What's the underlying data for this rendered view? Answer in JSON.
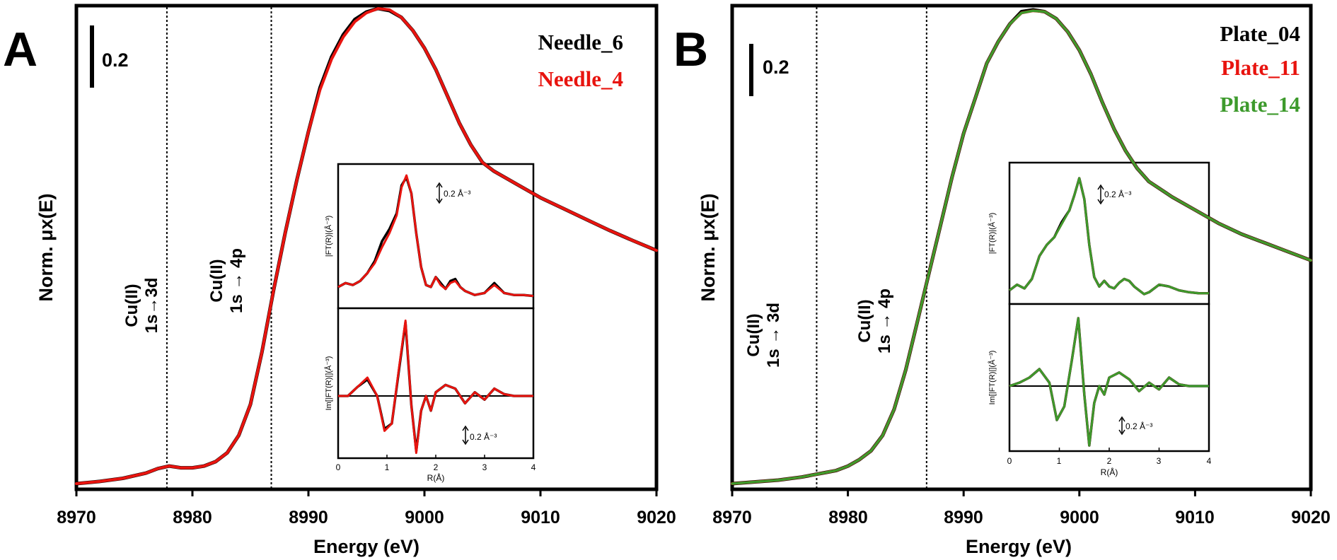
{
  "chart_data": [
    {
      "panel": "A",
      "type": "line",
      "xlabel": "Energy (eV)",
      "ylabel": "Norm. μx(E)",
      "xlim": [
        8970,
        9020
      ],
      "xticks": [
        "8970",
        "8980",
        "8990",
        "9000",
        "9010",
        "9020"
      ],
      "scale_bar": "0.2",
      "vlines": [
        8977.8,
        8986.8
      ],
      "annotations": [
        {
          "line1": "Cu(II)",
          "line2": "1s→3d"
        },
        {
          "line1": "Cu(II)",
          "line2": "1s → 4p"
        }
      ],
      "legend_position": "top-right",
      "x": [
        8970,
        8972,
        8974,
        8976,
        8977,
        8978,
        8979,
        8980,
        8981,
        8982,
        8983,
        8984,
        8985,
        8986,
        8987,
        8988,
        8989,
        8990,
        8991,
        8992,
        8993,
        8994,
        8995,
        8996,
        8997,
        8998,
        8999,
        9000,
        9001,
        9002,
        9003,
        9004,
        9005,
        9006,
        9008,
        9010,
        9012,
        9014,
        9016,
        9018,
        9020
      ],
      "series": [
        {
          "name": "Needle_6",
          "color": "#000000",
          "values": [
            0.0,
            0.005,
            0.012,
            0.024,
            0.034,
            0.04,
            0.036,
            0.036,
            0.04,
            0.05,
            0.07,
            0.11,
            0.18,
            0.3,
            0.44,
            0.57,
            0.69,
            0.8,
            0.9,
            0.97,
            1.02,
            1.055,
            1.072,
            1.08,
            1.075,
            1.06,
            1.03,
            0.99,
            0.94,
            0.88,
            0.82,
            0.77,
            0.73,
            0.71,
            0.68,
            0.65,
            0.625,
            0.6,
            0.575,
            0.552,
            0.53
          ]
        },
        {
          "name": "Needle_4",
          "color": "#e8140f",
          "values": [
            0.0,
            0.005,
            0.012,
            0.024,
            0.034,
            0.04,
            0.036,
            0.036,
            0.04,
            0.05,
            0.07,
            0.11,
            0.18,
            0.3,
            0.44,
            0.57,
            0.69,
            0.8,
            0.895,
            0.965,
            1.015,
            1.05,
            1.07,
            1.08,
            1.077,
            1.06,
            1.03,
            0.99,
            0.94,
            0.88,
            0.82,
            0.77,
            0.73,
            0.71,
            0.68,
            0.65,
            0.625,
            0.6,
            0.575,
            0.552,
            0.53
          ]
        }
      ],
      "inset": {
        "top": {
          "ylabel": "|FT(R)|(Å⁻³)",
          "scale_bar": "0.2 Å⁻³",
          "x": [
            0.0,
            0.15,
            0.3,
            0.45,
            0.6,
            0.75,
            0.9,
            1.05,
            1.2,
            1.3,
            1.4,
            1.5,
            1.6,
            1.7,
            1.8,
            1.9,
            2.0,
            2.1,
            2.2,
            2.3,
            2.4,
            2.5,
            2.6,
            2.7,
            2.8,
            3.0,
            3.2,
            3.4,
            3.6,
            3.8,
            4.0
          ],
          "series": [
            {
              "name": "Needle_6",
              "color": "#000000",
              "values": [
                0.05,
                0.07,
                0.06,
                0.08,
                0.12,
                0.18,
                0.28,
                0.34,
                0.42,
                0.56,
                0.6,
                0.52,
                0.32,
                0.15,
                0.06,
                0.05,
                0.1,
                0.07,
                0.04,
                0.08,
                0.09,
                0.05,
                0.03,
                0.02,
                0.01,
                0.02,
                0.07,
                0.02,
                0.01,
                0.01,
                0.005
              ]
            },
            {
              "name": "Needle_4",
              "color": "#e8140f",
              "values": [
                0.05,
                0.07,
                0.06,
                0.08,
                0.12,
                0.17,
                0.25,
                0.32,
                0.41,
                0.55,
                0.61,
                0.52,
                0.32,
                0.15,
                0.06,
                0.05,
                0.1,
                0.06,
                0.04,
                0.07,
                0.08,
                0.05,
                0.03,
                0.02,
                0.01,
                0.02,
                0.06,
                0.02,
                0.01,
                0.01,
                0.005
              ]
            }
          ]
        },
        "bottom": {
          "ylabel": "Im[|FT(R)|](Å⁻³)",
          "scale_bar": "0.2 Å⁻³",
          "x": [
            0.0,
            0.2,
            0.4,
            0.6,
            0.8,
            0.95,
            1.1,
            1.25,
            1.38,
            1.5,
            1.6,
            1.7,
            1.8,
            1.9,
            2.0,
            2.2,
            2.4,
            2.6,
            2.8,
            3.0,
            3.2,
            3.4,
            3.6,
            3.8,
            4.0
          ],
          "xticks": [
            "0",
            "1",
            "2",
            "3",
            "4"
          ],
          "xlabel": "R(Å)",
          "series": [
            {
              "name": "Needle_6",
              "color": "#000000",
              "values": [
                0.0,
                0.0,
                0.05,
                0.09,
                0.0,
                -0.18,
                -0.15,
                0.15,
                0.4,
                -0.05,
                -0.3,
                -0.08,
                0.0,
                -0.08,
                0.02,
                0.06,
                0.04,
                -0.04,
                0.02,
                -0.02,
                0.04,
                0.01,
                0.0,
                0.0,
                0.0
              ]
            },
            {
              "name": "Needle_4",
              "color": "#e8140f",
              "values": [
                0.0,
                0.0,
                0.05,
                0.1,
                0.0,
                -0.19,
                -0.15,
                0.16,
                0.41,
                -0.05,
                -0.31,
                -0.08,
                0.0,
                -0.08,
                0.02,
                0.06,
                0.04,
                -0.04,
                0.02,
                -0.02,
                0.04,
                0.01,
                0.0,
                0.0,
                0.0
              ]
            }
          ]
        }
      }
    },
    {
      "panel": "B",
      "type": "line",
      "xlabel": "Energy (eV)",
      "ylabel": "Norm. μx(E)",
      "xlim": [
        8970,
        9020
      ],
      "xticks": [
        "8970",
        "8980",
        "8990",
        "9000",
        "9010",
        "9020"
      ],
      "scale_bar": "0.2",
      "vlines": [
        8977.3,
        8986.8
      ],
      "annotations": [
        {
          "line1": "Cu(II)",
          "line2": "1s → 3d"
        },
        {
          "line1": "Cu(II)",
          "line2": "1s → 4p"
        }
      ],
      "legend_position": "top-right",
      "x": [
        8970,
        8972,
        8974,
        8976,
        8977,
        8978,
        8979,
        8980,
        8981,
        8982,
        8983,
        8984,
        8985,
        8986,
        8987,
        8988,
        8989,
        8990,
        8991,
        8992,
        8993,
        8994,
        8995,
        8996,
        8997,
        8998,
        8999,
        9000,
        9001,
        9002,
        9003,
        9004,
        9005,
        9006,
        9008,
        9010,
        9012,
        9014,
        9016,
        9018,
        9020
      ],
      "series": [
        {
          "name": "Plate_04",
          "color": "#000000",
          "values": [
            0.0,
            0.004,
            0.008,
            0.015,
            0.02,
            0.025,
            0.03,
            0.04,
            0.055,
            0.075,
            0.11,
            0.17,
            0.26,
            0.37,
            0.48,
            0.59,
            0.7,
            0.8,
            0.88,
            0.96,
            1.01,
            1.05,
            1.078,
            1.082,
            1.078,
            1.062,
            1.032,
            0.99,
            0.935,
            0.87,
            0.81,
            0.76,
            0.72,
            0.69,
            0.655,
            0.625,
            0.595,
            0.57,
            0.55,
            0.53,
            0.51
          ]
        },
        {
          "name": "Plate_11",
          "color": "#e8140f",
          "values": [
            0.0,
            0.004,
            0.008,
            0.015,
            0.02,
            0.025,
            0.03,
            0.04,
            0.055,
            0.075,
            0.11,
            0.17,
            0.26,
            0.37,
            0.48,
            0.59,
            0.7,
            0.8,
            0.88,
            0.96,
            1.01,
            1.05,
            1.075,
            1.08,
            1.078,
            1.062,
            1.032,
            0.99,
            0.935,
            0.87,
            0.81,
            0.76,
            0.72,
            0.69,
            0.655,
            0.625,
            0.595,
            0.57,
            0.55,
            0.53,
            0.51
          ]
        },
        {
          "name": "Plate_14",
          "color": "#3d9a2c",
          "values": [
            0.0,
            0.004,
            0.008,
            0.015,
            0.02,
            0.025,
            0.03,
            0.04,
            0.055,
            0.075,
            0.11,
            0.17,
            0.26,
            0.37,
            0.48,
            0.59,
            0.7,
            0.8,
            0.88,
            0.96,
            1.01,
            1.05,
            1.075,
            1.08,
            1.078,
            1.062,
            1.032,
            0.99,
            0.935,
            0.87,
            0.81,
            0.76,
            0.72,
            0.69,
            0.655,
            0.625,
            0.595,
            0.57,
            0.55,
            0.53,
            0.51
          ]
        }
      ],
      "inset": {
        "top": {
          "ylabel": "|FT(R)|(Å⁻³)",
          "scale_bar": "0.2 Å⁻³",
          "x": [
            0.0,
            0.15,
            0.3,
            0.45,
            0.6,
            0.75,
            0.9,
            1.05,
            1.2,
            1.3,
            1.4,
            1.5,
            1.6,
            1.7,
            1.8,
            1.9,
            2.0,
            2.1,
            2.2,
            2.3,
            2.4,
            2.5,
            2.6,
            2.7,
            2.8,
            3.0,
            3.2,
            3.4,
            3.6,
            3.8,
            4.0
          ],
          "series": [
            {
              "name": "Plate_04",
              "color": "#000000",
              "values": [
                0.02,
                0.05,
                0.03,
                0.08,
                0.2,
                0.26,
                0.3,
                0.38,
                0.44,
                0.52,
                0.61,
                0.5,
                0.26,
                0.09,
                0.04,
                0.07,
                0.04,
                0.03,
                0.06,
                0.08,
                0.07,
                0.04,
                0.02,
                0.0,
                0.01,
                0.05,
                0.04,
                0.02,
                0.01,
                0.005,
                0.005
              ]
            },
            {
              "name": "Plate_11",
              "color": "#e8140f",
              "values": [
                0.02,
                0.05,
                0.03,
                0.08,
                0.2,
                0.26,
                0.3,
                0.37,
                0.44,
                0.52,
                0.61,
                0.5,
                0.26,
                0.09,
                0.04,
                0.07,
                0.04,
                0.03,
                0.06,
                0.08,
                0.07,
                0.04,
                0.02,
                0.0,
                0.01,
                0.05,
                0.04,
                0.02,
                0.01,
                0.005,
                0.005
              ]
            },
            {
              "name": "Plate_14",
              "color": "#3d9a2c",
              "values": [
                0.02,
                0.05,
                0.03,
                0.08,
                0.2,
                0.26,
                0.3,
                0.37,
                0.44,
                0.52,
                0.61,
                0.5,
                0.26,
                0.09,
                0.04,
                0.07,
                0.04,
                0.03,
                0.06,
                0.08,
                0.07,
                0.04,
                0.02,
                0.0,
                0.01,
                0.05,
                0.04,
                0.02,
                0.01,
                0.005,
                0.005
              ]
            }
          ]
        },
        "bottom": {
          "ylabel": "Im[|FT(R)|](Å⁻³)",
          "scale_bar": "0.2 Å⁻³",
          "x": [
            0.0,
            0.2,
            0.4,
            0.6,
            0.8,
            0.95,
            1.1,
            1.25,
            1.38,
            1.5,
            1.6,
            1.7,
            1.8,
            1.9,
            2.0,
            2.2,
            2.4,
            2.6,
            2.8,
            3.0,
            3.2,
            3.4,
            3.6,
            3.8,
            4.0
          ],
          "xticks": [
            "0",
            "1",
            "2",
            "3",
            "4"
          ],
          "xlabel": "R(Å)",
          "series": [
            {
              "name": "Plate_04",
              "color": "#000000",
              "values": [
                0.0,
                0.02,
                0.05,
                0.1,
                0.02,
                -0.2,
                -0.12,
                0.15,
                0.4,
                -0.05,
                -0.35,
                -0.1,
                0.0,
                -0.05,
                0.05,
                0.08,
                0.04,
                -0.03,
                0.02,
                -0.02,
                0.05,
                0.01,
                0.0,
                0.0,
                0.0
              ]
            },
            {
              "name": "Plate_11",
              "color": "#e8140f",
              "values": [
                0.0,
                0.02,
                0.05,
                0.1,
                0.02,
                -0.2,
                -0.12,
                0.15,
                0.4,
                -0.05,
                -0.35,
                -0.1,
                0.0,
                -0.05,
                0.05,
                0.08,
                0.04,
                -0.03,
                0.02,
                -0.02,
                0.05,
                0.01,
                0.0,
                0.0,
                0.0
              ]
            },
            {
              "name": "Plate_14",
              "color": "#3d9a2c",
              "values": [
                0.0,
                0.02,
                0.05,
                0.1,
                0.02,
                -0.2,
                -0.12,
                0.15,
                0.4,
                -0.05,
                -0.35,
                -0.1,
                0.0,
                -0.05,
                0.05,
                0.08,
                0.04,
                -0.03,
                0.02,
                -0.02,
                0.05,
                0.01,
                0.0,
                0.0,
                0.0
              ]
            }
          ]
        }
      }
    }
  ]
}
